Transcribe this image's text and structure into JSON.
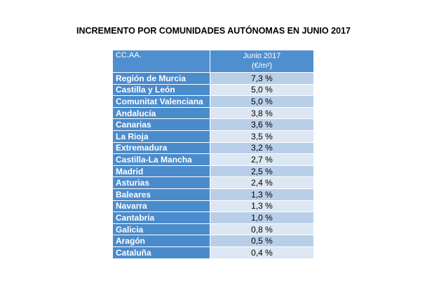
{
  "chart_data": {
    "type": "table",
    "title": "INCREMENTO POR COMUNIDADES AUTÓNOMAS EN JUNIO 2017",
    "columns": [
      "CC.AA.",
      "Junio 2017",
      "(€/m²)"
    ],
    "rows": [
      {
        "name": "Región de Murcia",
        "value": "7,3 %"
      },
      {
        "name": "Castilla y León",
        "value": "5,0 %"
      },
      {
        "name": "Comunitat Valenciana",
        "value": "5,0 %"
      },
      {
        "name": "Andalucía",
        "value": "3,8 %"
      },
      {
        "name": "Canarias",
        "value": "3,6 %"
      },
      {
        "name": "La Rioja",
        "value": "3,5 %"
      },
      {
        "name": "Extremadura",
        "value": "3,2 %"
      },
      {
        "name": "Castilla-La Mancha",
        "value": "2,7 %"
      },
      {
        "name": "Madrid",
        "value": "2,5 %"
      },
      {
        "name": "Asturias",
        "value": "2,4 %"
      },
      {
        "name": "Baleares",
        "value": "1,3 %"
      },
      {
        "name": "Navarra",
        "value": "1,3 %"
      },
      {
        "name": "Cantabria",
        "value": "1,0 %"
      },
      {
        "name": "Galicia",
        "value": "0,8 %"
      },
      {
        "name": "Aragón",
        "value": "0,5 %"
      },
      {
        "name": "Cataluña",
        "value": "0,4 %"
      }
    ],
    "colors": {
      "header": "#4f8fcf",
      "name_cell": "#4a8bcc",
      "value_odd": "#b9cfe8",
      "value_even": "#dce7f3"
    }
  }
}
